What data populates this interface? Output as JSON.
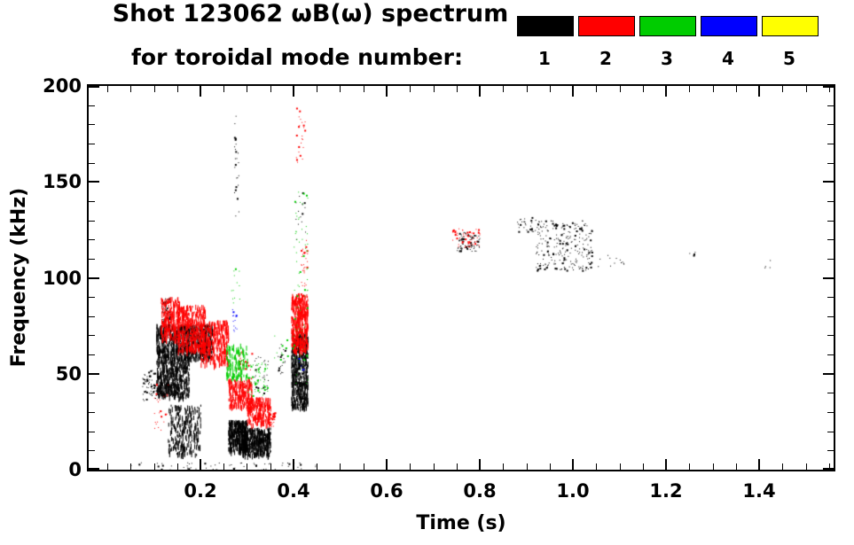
{
  "title": {
    "line1": "Shot 123062 ωB(ω) spectrum",
    "line2": "for toroidal mode number:"
  },
  "legend": {
    "modes": [
      {
        "label": "1",
        "color": "#000000"
      },
      {
        "label": "2",
        "color": "#ff0000"
      },
      {
        "label": "3",
        "color": "#00cc00"
      },
      {
        "label": "4",
        "color": "#0000ff"
      },
      {
        "label": "5",
        "color": "#ffff00"
      }
    ]
  },
  "axes": {
    "x": {
      "label": "Time (s)",
      "min": -0.04,
      "max": 1.56,
      "minor_step": 0.05,
      "major_ticks": [
        0.2,
        0.4,
        0.6,
        0.8,
        1.0,
        1.2,
        1.4
      ],
      "tick_labels": [
        "0.2",
        "0.4",
        "0.6",
        "0.8",
        "1.0",
        "1.2",
        "1.4"
      ]
    },
    "y": {
      "label": "Frequency (kHz)",
      "min": 0,
      "max": 200,
      "minor_step": 10,
      "major_ticks": [
        0,
        50,
        100,
        150,
        200
      ],
      "tick_labels": [
        "0",
        "50",
        "100",
        "150",
        "200"
      ]
    }
  },
  "chart_data": {
    "type": "scatter",
    "title": "Shot 123062 ωB(ω) spectrum for toroidal mode number",
    "xlabel": "Time (s)",
    "ylabel": "Frequency (kHz)",
    "xlim": [
      -0.04,
      1.56
    ],
    "ylim": [
      0,
      200
    ],
    "legend_position": "top-right",
    "grid": false,
    "series": [
      {
        "name": "n=1",
        "color": "#000000",
        "clusters": [
          {
            "t": [
              0.075,
              0.105
            ],
            "f": [
              36,
              52
            ],
            "n": 60,
            "style": "dot"
          },
          {
            "t": [
              0.105,
              0.175
            ],
            "f": [
              38,
              76
            ],
            "n": 900,
            "style": "streak"
          },
          {
            "t": [
              0.115,
              0.135
            ],
            "f": [
              76,
              90
            ],
            "n": 60,
            "style": "dot"
          },
          {
            "t": [
              0.13,
              0.2
            ],
            "f": [
              8,
              34
            ],
            "n": 260,
            "style": "streak"
          },
          {
            "t": [
              0.17,
              0.225
            ],
            "f": [
              58,
              76
            ],
            "n": 350,
            "style": "streak"
          },
          {
            "t": [
              0.26,
              0.3
            ],
            "f": [
              10,
              26
            ],
            "n": 420,
            "style": "streak"
          },
          {
            "t": [
              0.29,
              0.35
            ],
            "f": [
              8,
              22
            ],
            "n": 420,
            "style": "streak"
          },
          {
            "t": [
              0.315,
              0.345
            ],
            "f": [
              40,
              60
            ],
            "n": 30,
            "style": "dot"
          },
          {
            "t": [
              0.365,
              0.385
            ],
            "f": [
              50,
              66
            ],
            "n": 20,
            "style": "dot"
          },
          {
            "t": [
              0.272,
              0.282
            ],
            "f": [
              130,
              185
            ],
            "n": 25,
            "style": "dot"
          },
          {
            "t": [
              0.395,
              0.43
            ],
            "f": [
              32,
              72
            ],
            "n": 500,
            "style": "streak"
          },
          {
            "t": [
              0.4,
              0.425
            ],
            "f": [
              120,
              145
            ],
            "n": 15,
            "style": "dot"
          },
          {
            "t": [
              0.05,
              0.45
            ],
            "f": [
              0,
              4
            ],
            "n": 60,
            "style": "dot"
          },
          {
            "t": [
              0.75,
              0.8
            ],
            "f": [
              114,
              124
            ],
            "n": 80,
            "style": "dot"
          },
          {
            "t": [
              0.88,
              0.92
            ],
            "f": [
              124,
              132
            ],
            "n": 30,
            "style": "dot"
          },
          {
            "t": [
              0.92,
              1.04
            ],
            "f": [
              104,
              130
            ],
            "n": 260,
            "style": "dot"
          },
          {
            "t": [
              1.05,
              1.12
            ],
            "f": [
              105,
              112
            ],
            "n": 12,
            "style": "dot"
          },
          {
            "t": [
              1.25,
              1.27
            ],
            "f": [
              110,
              114
            ],
            "n": 4,
            "style": "dot"
          },
          {
            "t": [
              1.41,
              1.43
            ],
            "f": [
              105,
              110
            ],
            "n": 4,
            "style": "dot"
          }
        ]
      },
      {
        "name": "n=2",
        "color": "#ff0000",
        "clusters": [
          {
            "t": [
              0.115,
              0.155
            ],
            "f": [
              68,
              90
            ],
            "n": 250,
            "style": "streak"
          },
          {
            "t": [
              0.15,
              0.21
            ],
            "f": [
              62,
              86
            ],
            "n": 400,
            "style": "streak"
          },
          {
            "t": [
              0.2,
              0.26
            ],
            "f": [
              55,
              78
            ],
            "n": 350,
            "style": "streak"
          },
          {
            "t": [
              0.1,
              0.13
            ],
            "f": [
              20,
              45
            ],
            "n": 25,
            "style": "dot"
          },
          {
            "t": [
              0.26,
              0.31
            ],
            "f": [
              33,
              48
            ],
            "n": 220,
            "style": "streak"
          },
          {
            "t": [
              0.3,
              0.35
            ],
            "f": [
              24,
              38
            ],
            "n": 220,
            "style": "streak"
          },
          {
            "t": [
              0.345,
              0.36
            ],
            "f": [
              22,
              30
            ],
            "n": 40,
            "style": "dot"
          },
          {
            "t": [
              0.28,
              0.31
            ],
            "f": [
              52,
              62
            ],
            "n": 25,
            "style": "dot"
          },
          {
            "t": [
              0.395,
              0.43
            ],
            "f": [
              62,
              92
            ],
            "n": 450,
            "style": "streak"
          },
          {
            "t": [
              0.415,
              0.43
            ],
            "f": [
              95,
              120
            ],
            "n": 30,
            "style": "dot"
          },
          {
            "t": [
              0.405,
              0.425
            ],
            "f": [
              160,
              190
            ],
            "n": 25,
            "style": "dot"
          },
          {
            "t": [
              0.74,
              0.8
            ],
            "f": [
              116,
              126
            ],
            "n": 60,
            "style": "dot"
          }
        ]
      },
      {
        "name": "n=3",
        "color": "#00cc00",
        "clusters": [
          {
            "t": [
              0.255,
              0.3
            ],
            "f": [
              48,
              66
            ],
            "n": 130,
            "style": "streak"
          },
          {
            "t": [
              0.3,
              0.345
            ],
            "f": [
              38,
              56
            ],
            "n": 60,
            "style": "dot"
          },
          {
            "t": [
              0.265,
              0.285
            ],
            "f": [
              85,
              105
            ],
            "n": 12,
            "style": "dot"
          },
          {
            "t": [
              0.35,
              0.4
            ],
            "f": [
              55,
              70
            ],
            "n": 15,
            "style": "dot"
          },
          {
            "t": [
              0.4,
              0.43
            ],
            "f": [
              40,
              145
            ],
            "n": 70,
            "style": "dot"
          }
        ]
      },
      {
        "name": "n=4",
        "color": "#0000ff",
        "clusters": [
          {
            "t": [
              0.268,
              0.278
            ],
            "f": [
              72,
              86
            ],
            "n": 14,
            "style": "dot"
          },
          {
            "t": [
              0.41,
              0.42
            ],
            "f": [
              52,
              60
            ],
            "n": 5,
            "style": "dot"
          }
        ]
      },
      {
        "name": "n=5",
        "color": "#ffff00",
        "clusters": []
      }
    ]
  }
}
